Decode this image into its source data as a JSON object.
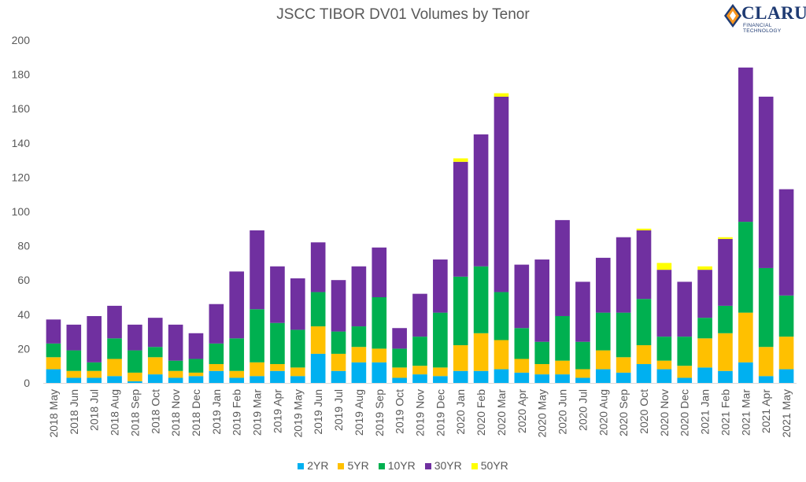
{
  "chart_data": {
    "type": "bar",
    "stacked": true,
    "title": "JSCC TIBOR DV01 Volumes by Tenor",
    "xlabel": "",
    "ylabel": "",
    "ylim": [
      0,
      200
    ],
    "yticks": [
      0,
      20,
      40,
      60,
      80,
      100,
      120,
      140,
      160,
      180,
      200
    ],
    "grid": false,
    "legend_position": "bottom",
    "categories": [
      "2018 May",
      "2018 Jun",
      "2018 Jul",
      "2018 Aug",
      "2018 Sep",
      "2018 Oct",
      "2018 Nov",
      "2018 Dec",
      "2019 Jan",
      "2019 Feb",
      "2019 Mar",
      "2019 Apr",
      "2019 May",
      "2019 Jun",
      "2019 Jul",
      "2019 Aug",
      "2019 Sep",
      "2019 Oct",
      "2019 Nov",
      "2019 Dec",
      "2020 Jan",
      "2020 Feb",
      "2020 Mar",
      "2020 Apr",
      "2020 May",
      "2020 Jun",
      "2020 Jul",
      "2020 Aug",
      "2020 Sep",
      "2020 Oct",
      "2020 Nov",
      "2020 Dec",
      "2021 Jan",
      "2021 Feb",
      "2021 Mar",
      "2021 Apr",
      "2021 May"
    ],
    "series": [
      {
        "name": "2YR",
        "color": "#00b0f0",
        "values": [
          8,
          3,
          3,
          4,
          1,
          5,
          3,
          4,
          7,
          3,
          4,
          7,
          4,
          17,
          7,
          12,
          12,
          3,
          5,
          4,
          7,
          7,
          8,
          6,
          5,
          5,
          3,
          8,
          6,
          11,
          8,
          3,
          9,
          7,
          12,
          4,
          8
        ]
      },
      {
        "name": "5YR",
        "color": "#ffc000",
        "values": [
          7,
          4,
          4,
          10,
          5,
          10,
          4,
          2,
          4,
          4,
          8,
          4,
          5,
          16,
          10,
          9,
          8,
          6,
          5,
          5,
          15,
          22,
          17,
          8,
          6,
          8,
          5,
          11,
          9,
          11,
          5,
          7,
          17,
          22,
          29,
          17,
          19
        ]
      },
      {
        "name": "10YR",
        "color": "#00b050",
        "values": [
          8,
          12,
          5,
          12,
          13,
          6,
          6,
          8,
          12,
          19,
          31,
          24,
          22,
          20,
          13,
          12,
          30,
          11,
          17,
          32,
          40,
          39,
          28,
          18,
          13,
          26,
          16,
          22,
          26,
          27,
          14,
          17,
          12,
          16,
          53,
          46,
          24
        ]
      },
      {
        "name": "30YR",
        "color": "#7030a0",
        "values": [
          14,
          15,
          27,
          19,
          15,
          17,
          21,
          15,
          23,
          39,
          46,
          33,
          30,
          29,
          30,
          35,
          29,
          12,
          25,
          31,
          67,
          77,
          114,
          37,
          48,
          56,
          35,
          32,
          44,
          40,
          39,
          32,
          28,
          39,
          90,
          100,
          62
        ]
      },
      {
        "name": "50YR",
        "color": "#ffff00",
        "values": [
          0,
          0,
          0,
          0,
          0,
          0,
          0,
          0,
          0,
          0,
          0,
          0,
          0,
          0,
          0,
          0,
          0,
          0,
          0,
          0,
          2,
          0,
          2,
          0,
          0,
          0,
          0,
          0,
          0,
          1,
          4,
          0,
          2,
          1,
          0,
          0,
          0
        ]
      }
    ]
  },
  "logo": {
    "word": "CLARUS",
    "sub": "FINANCIAL TECHNOLOGY"
  }
}
